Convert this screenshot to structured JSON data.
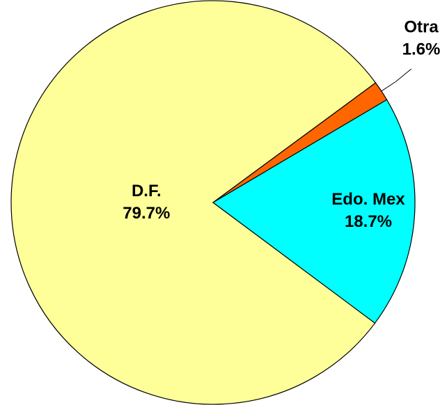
{
  "chart_data": {
    "type": "pie",
    "categories": [
      "D.F.",
      "Otra",
      "Edo. Mex"
    ],
    "values": [
      79.7,
      1.6,
      18.7
    ],
    "value_labels": [
      "79.7%",
      "1.6%",
      "18.7%"
    ],
    "colors": [
      "#ffff99",
      "#ff6600",
      "#00ffff"
    ]
  }
}
